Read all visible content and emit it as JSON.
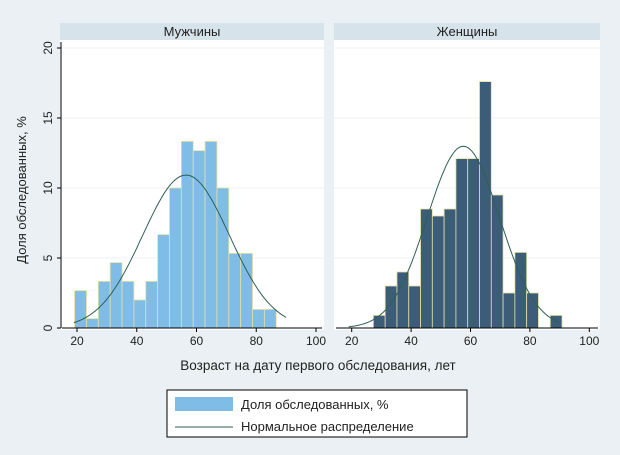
{
  "colors": {
    "male_bars": "#7fbde6",
    "female_bars": "#3b5d78",
    "bar_edge": "#e6dfa6",
    "curve": "#2f5f55",
    "background": "#eaf0f3",
    "strip": "#d7e3ea"
  },
  "chart_data": [
    {
      "type": "bar",
      "panel_title": "Мужчины",
      "bin_width": 3.97,
      "bin_start": 19.2,
      "values": [
        2.67,
        0.67,
        3.33,
        4.67,
        3.33,
        2.0,
        3.33,
        6.67,
        10.0,
        13.33,
        12.67,
        13.33,
        10.0,
        5.33,
        5.33,
        1.33,
        1.33
      ],
      "normal_curve": {
        "mean": 56.5,
        "sd": 14.5,
        "x_range": [
          19,
          90
        ]
      },
      "xlim": [
        20,
        100
      ],
      "ylim": [
        0,
        20
      ],
      "xticks": [
        "20",
        "40",
        "60",
        "80",
        "100"
      ],
      "yticks": [
        "0",
        "5",
        "10",
        "15",
        "20"
      ],
      "grid": true
    },
    {
      "type": "bar",
      "panel_title": "Женщины",
      "bin_width": 3.97,
      "bin_start": 27.3,
      "values": [
        0.9,
        3.0,
        4.0,
        3.0,
        8.5,
        8.0,
        8.5,
        12.1,
        12.1,
        17.6,
        9.5,
        2.5,
        5.4,
        2.5,
        0,
        0.9
      ],
      "normal_curve": {
        "mean": 57.6,
        "sd": 12.2,
        "x_range": [
          19,
          90
        ]
      },
      "xlim": [
        20,
        100
      ],
      "ylim": [
        0,
        20
      ],
      "xticks": [
        "20",
        "40",
        "60",
        "80",
        "100"
      ],
      "grid": true
    }
  ],
  "ylabel": "Доля обследованных, %",
  "xlabel": "Возраст на дату первого обследования, лет",
  "legend": {
    "position": "bottom",
    "items": [
      "Доля обследованных, %",
      "Нормальное распределение"
    ]
  }
}
